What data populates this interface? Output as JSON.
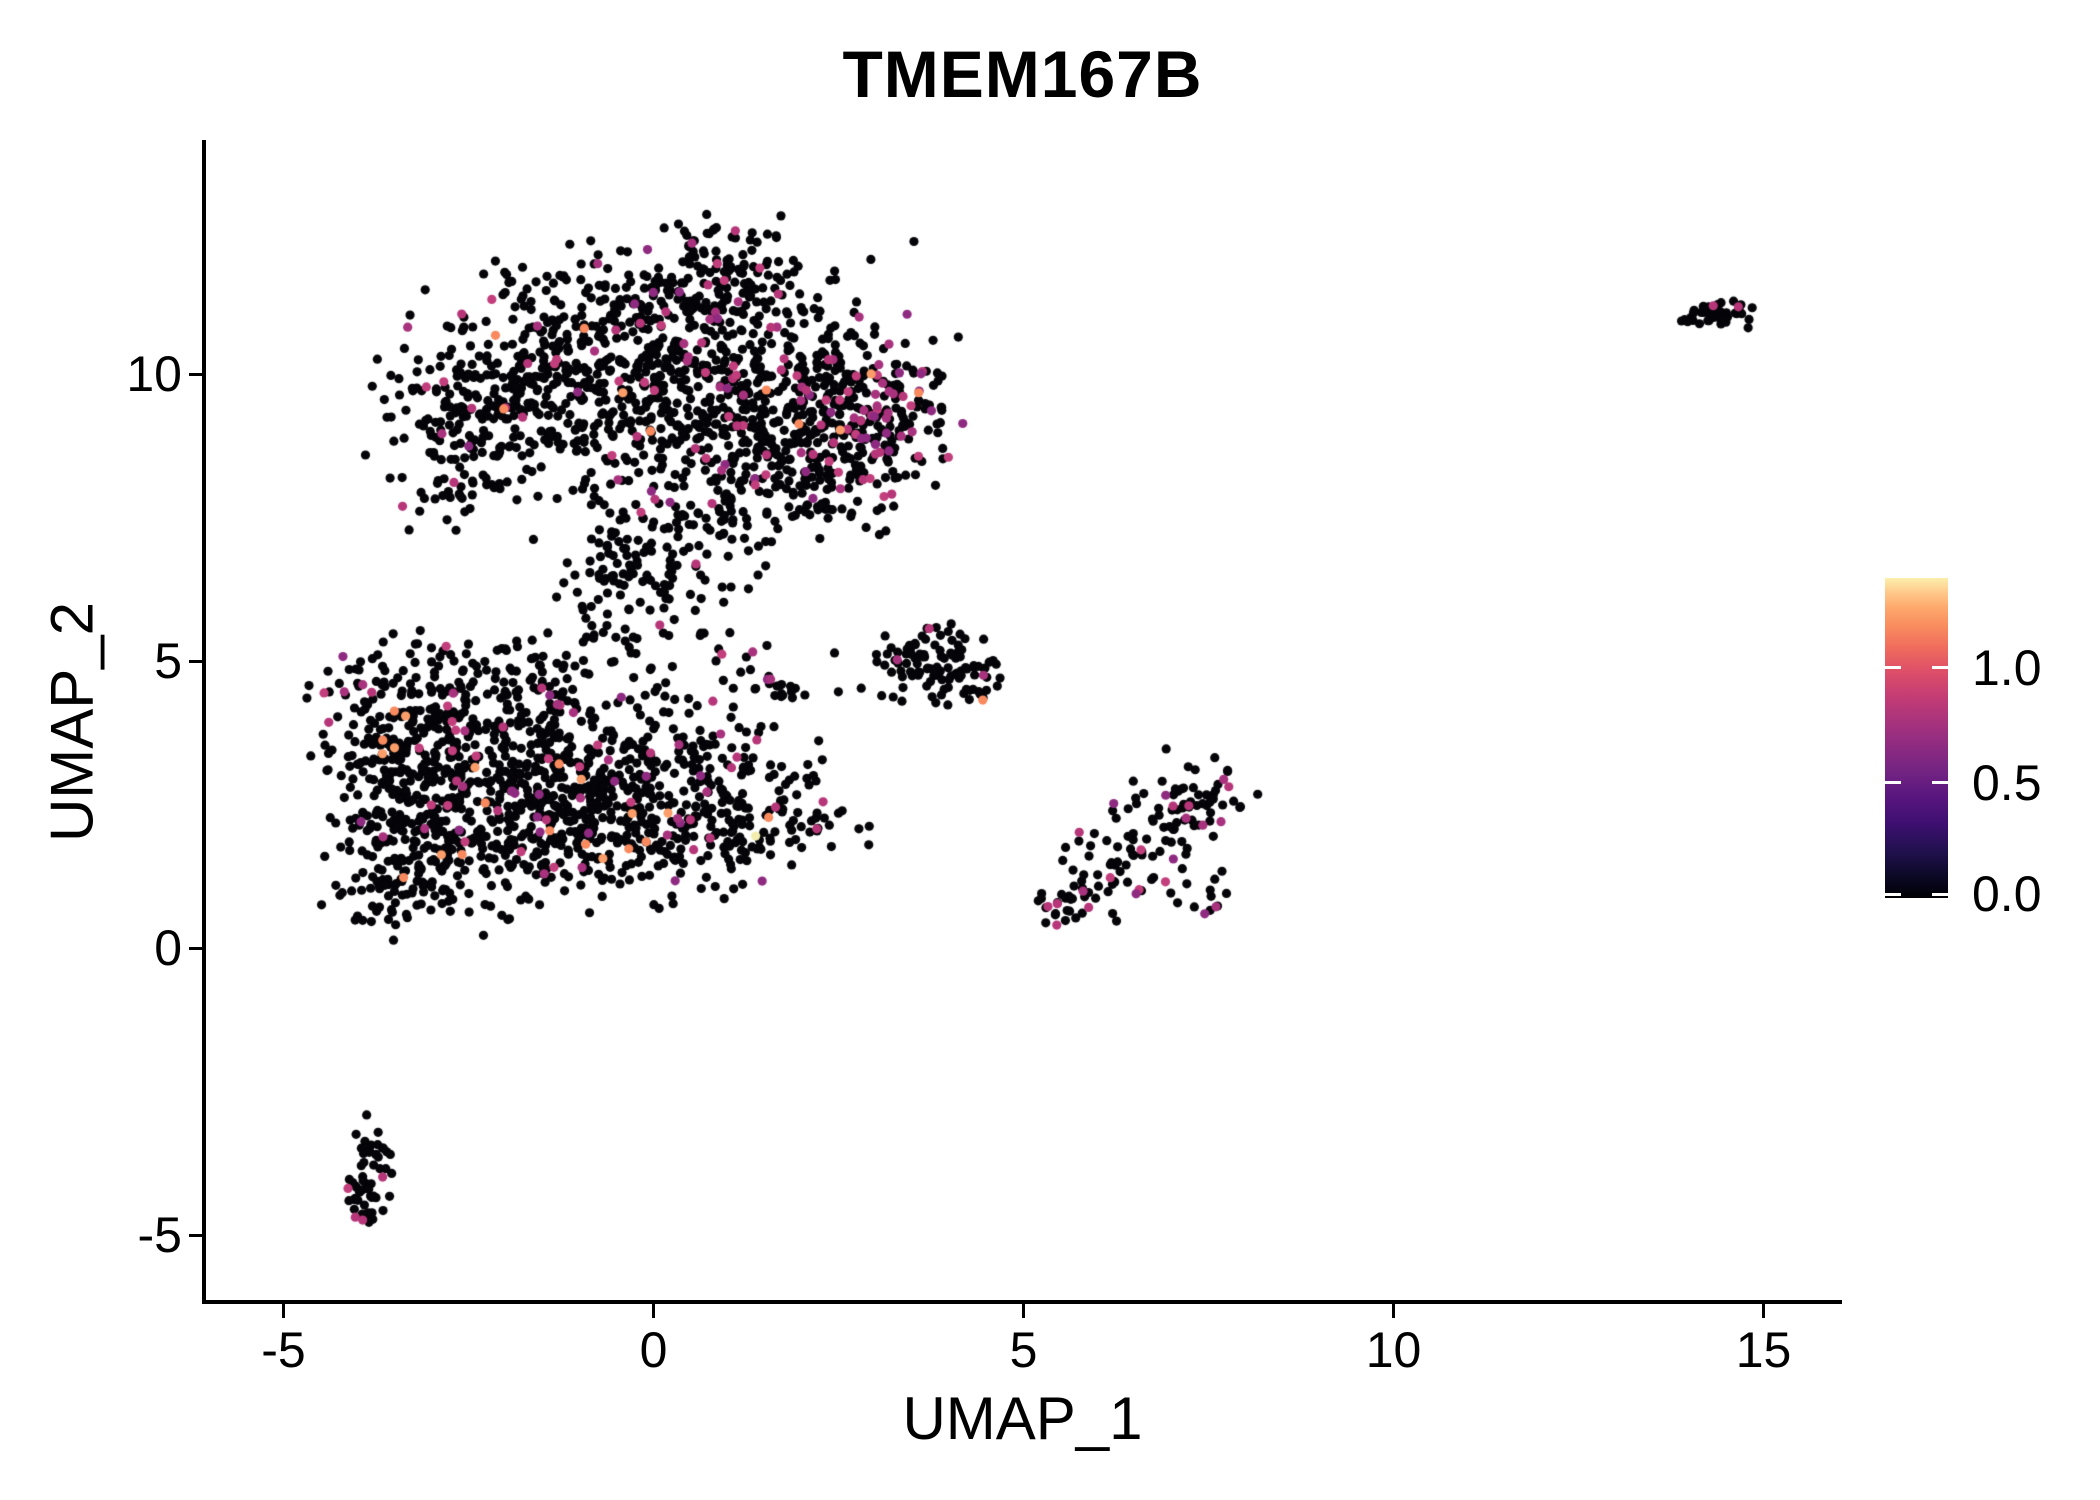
{
  "chart_data": {
    "type": "scatter",
    "title": "TMEM167B",
    "xlabel": "UMAP_1",
    "ylabel": "UMAP_2",
    "xlim": [
      -6.05,
      16.05
    ],
    "ylim": [
      -6.2,
      14.05
    ],
    "grid": false,
    "x_ticks": [
      {
        "value": -5,
        "label": "-5"
      },
      {
        "value": 0,
        "label": "0"
      },
      {
        "value": 5,
        "label": "5"
      },
      {
        "value": 10,
        "label": "10"
      },
      {
        "value": 15,
        "label": "15"
      }
    ],
    "y_ticks": [
      {
        "value": 10,
        "label": "10"
      },
      {
        "value": 5,
        "label": "5"
      },
      {
        "value": 0,
        "label": "0"
      },
      {
        "value": -5,
        "label": "-5"
      }
    ],
    "legend": {
      "position": "right",
      "colormap": "magma",
      "value_range": [
        0,
        1.39
      ],
      "ticks": [
        {
          "value": 1.0,
          "label": "1.0"
        },
        {
          "value": 0.5,
          "label": "0.5"
        },
        {
          "value": 0.0,
          "label": "0.0"
        }
      ],
      "gradient_stops_bottom_to_top": [
        {
          "pos": 0.0,
          "color": "#000004"
        },
        {
          "pos": 0.07,
          "color": "#0c0927"
        },
        {
          "pos": 0.15,
          "color": "#221150"
        },
        {
          "pos": 0.23,
          "color": "#3d0f70"
        },
        {
          "pos": 0.31,
          "color": "#57157e"
        },
        {
          "pos": 0.39,
          "color": "#712382"
        },
        {
          "pos": 0.47,
          "color": "#8c2a81"
        },
        {
          "pos": 0.55,
          "color": "#a8337d"
        },
        {
          "pos": 0.63,
          "color": "#c43c74"
        },
        {
          "pos": 0.71,
          "color": "#de4f68"
        },
        {
          "pos": 0.78,
          "color": "#ef6b5d"
        },
        {
          "pos": 0.85,
          "color": "#f98c5e"
        },
        {
          "pos": 0.91,
          "color": "#fdaa6d"
        },
        {
          "pos": 0.96,
          "color": "#fecd8e"
        },
        {
          "pos": 1.0,
          "color": "#fcefab"
        }
      ]
    },
    "style": {
      "point_radius_px": 4.6,
      "seed": 1337,
      "color_zero_expression": "#050408",
      "colors_mid_expression": [
        "#b63679",
        "#a8327d",
        "#c23e7c",
        "#8f2a81"
      ],
      "colors_high_expression": [
        "#f98a5e",
        "#fb9d69"
      ],
      "color_top_expression": "#f2ecae",
      "axis_color": "#000000",
      "background": "#ffffff"
    },
    "clusters_note": "UMAP point cloud approximated as gaussian blobs; cx/cy in data units, sx/sy std-dev, n points, m = fraction mid-expression (magenta), o = fraction high-expression (orange)",
    "blobs": [
      {
        "cx": 0.2,
        "cy": 10.35,
        "sx": 1.5,
        "sy": 0.85,
        "n": 430,
        "m": 0.05,
        "o": 0.006
      },
      {
        "cx": 1.2,
        "cy": 9.25,
        "sx": 1.25,
        "sy": 0.8,
        "n": 340,
        "m": 0.07,
        "o": 0.01
      },
      {
        "cx": -1.7,
        "cy": 9.4,
        "sx": 0.9,
        "sy": 0.8,
        "n": 220,
        "m": 0.045,
        "o": 0.004
      },
      {
        "cx": -2.7,
        "cy": 8.8,
        "sx": 0.5,
        "sy": 0.7,
        "n": 80,
        "m": 0.04,
        "o": 0
      },
      {
        "cx": 3.05,
        "cy": 9.4,
        "sx": 0.55,
        "sy": 0.65,
        "n": 140,
        "m": 0.17,
        "o": 0.015
      },
      {
        "cx": 1.0,
        "cy": 12.0,
        "sx": 0.5,
        "sy": 0.4,
        "n": 65,
        "m": 0.05,
        "o": 0
      },
      {
        "cx": 0.4,
        "cy": 11.25,
        "sx": 0.95,
        "sy": 0.45,
        "n": 100,
        "m": 0.05,
        "o": 0.005
      },
      {
        "cx": 0.1,
        "cy": 7.4,
        "sx": 0.85,
        "sy": 0.65,
        "n": 120,
        "m": 0.05,
        "o": 0.01
      },
      {
        "cx": -0.3,
        "cy": 6.35,
        "sx": 0.6,
        "sy": 0.5,
        "n": 55,
        "m": 0.04,
        "o": 0
      },
      {
        "cx": 1.9,
        "cy": 7.9,
        "sx": 0.75,
        "sy": 0.55,
        "n": 65,
        "m": 0.08,
        "o": 0
      },
      {
        "cx": 2.4,
        "cy": 8.6,
        "sx": 0.6,
        "sy": 0.5,
        "n": 70,
        "m": 0.12,
        "o": 0.01
      },
      {
        "cx": 0.4,
        "cy": 5.25,
        "sx": 1.1,
        "sy": 0.45,
        "n": 26,
        "m": 0.08,
        "o": 0
      },
      {
        "cx": -2.35,
        "cy": 3.35,
        "sx": 1.05,
        "sy": 0.95,
        "n": 400,
        "m": 0.06,
        "o": 0.012
      },
      {
        "cx": -1.0,
        "cy": 2.55,
        "sx": 1.05,
        "sy": 0.8,
        "n": 310,
        "m": 0.06,
        "o": 0.015
      },
      {
        "cx": -2.95,
        "cy": 1.7,
        "sx": 0.7,
        "sy": 0.65,
        "n": 170,
        "m": 0.05,
        "o": 0.01
      },
      {
        "cx": -3.55,
        "cy": 3.5,
        "sx": 0.45,
        "sy": 0.85,
        "n": 110,
        "m": 0.05,
        "o": 0.02
      },
      {
        "cx": 0.35,
        "cy": 3.05,
        "sx": 0.85,
        "sy": 0.75,
        "n": 150,
        "m": 0.07,
        "o": 0.01
      },
      {
        "cx": -0.2,
        "cy": 1.75,
        "sx": 0.85,
        "sy": 0.5,
        "n": 85,
        "m": 0.06,
        "o": 0.02
      },
      {
        "cx": 1.45,
        "cy": 2.2,
        "sx": 0.65,
        "sy": 0.45,
        "n": 75,
        "m": 0.07,
        "o": 0.02
      },
      {
        "cx": -2.1,
        "cy": 4.75,
        "sx": 1.15,
        "sy": 0.4,
        "n": 85,
        "m": 0.06,
        "o": 0
      },
      {
        "cx": -3.55,
        "cy": 0.85,
        "sx": 0.3,
        "sy": 0.35,
        "n": 32,
        "m": 0.06,
        "o": 0.1
      },
      {
        "cx": 1.7,
        "cy": 4.55,
        "sx": 0.42,
        "sy": 0.16,
        "n": 22,
        "m": 0.1,
        "o": 0
      },
      {
        "cx": 3.7,
        "cy": 4.95,
        "sx": 0.4,
        "sy": 0.32,
        "n": 92,
        "m": 0.05,
        "o": 0.01
      },
      {
        "cx": 4.3,
        "cy": 4.65,
        "sx": 0.22,
        "sy": 0.18,
        "n": 22,
        "m": 0.05,
        "o": 0
      },
      {
        "cx": 5.7,
        "cy": 0.7,
        "sx": 0.28,
        "sy": 0.22,
        "n": 28,
        "m": 0.1,
        "o": 0
      },
      {
        "cx": 6.35,
        "cy": 1.45,
        "sx": 0.42,
        "sy": 0.38,
        "n": 44,
        "m": 0.14,
        "o": 0
      },
      {
        "cx": 7.0,
        "cy": 2.2,
        "sx": 0.42,
        "sy": 0.38,
        "n": 48,
        "m": 0.18,
        "o": 0
      },
      {
        "cx": 7.5,
        "cy": 2.85,
        "sx": 0.28,
        "sy": 0.3,
        "n": 28,
        "m": 0.18,
        "o": 0
      },
      {
        "cx": 7.6,
        "cy": 0.85,
        "sx": 0.28,
        "sy": 0.16,
        "n": 12,
        "m": 0.17,
        "o": 0
      },
      {
        "cx": -3.85,
        "cy": -3.55,
        "sx": 0.14,
        "sy": 0.3,
        "n": 26,
        "m": 0.02,
        "o": 0
      },
      {
        "cx": -3.95,
        "cy": -4.35,
        "sx": 0.18,
        "sy": 0.28,
        "n": 30,
        "m": 0.02,
        "o": 0
      },
      {
        "cx": 14.3,
        "cy": 11.05,
        "sx": 0.26,
        "sy": 0.12,
        "n": 38,
        "m": 0.02,
        "o": 0
      },
      {
        "cx": 14.75,
        "cy": 11.15,
        "sx": 0.1,
        "sy": 0.08,
        "n": 6,
        "m": 0,
        "o": 0
      }
    ],
    "extra_points": [
      {
        "x": 2.55,
        "y": 2.39,
        "c": "zero"
      },
      {
        "x": 0.85,
        "y": 12.55,
        "c": "zero"
      },
      {
        "x": 1.38,
        "y": 1.95,
        "c": "top"
      },
      {
        "x": 4.45,
        "y": 4.32,
        "c": "high"
      },
      {
        "x": -3.66,
        "y": -3.99,
        "c": "mid"
      },
      {
        "x": -4.03,
        "y": -4.69,
        "c": "mid"
      },
      {
        "x": -3.93,
        "y": -4.74,
        "c": "mid"
      },
      {
        "x": 14.66,
        "y": 11.17,
        "c": "mid"
      },
      {
        "x": 5.45,
        "y": 0.4,
        "c": "mid"
      }
    ]
  }
}
